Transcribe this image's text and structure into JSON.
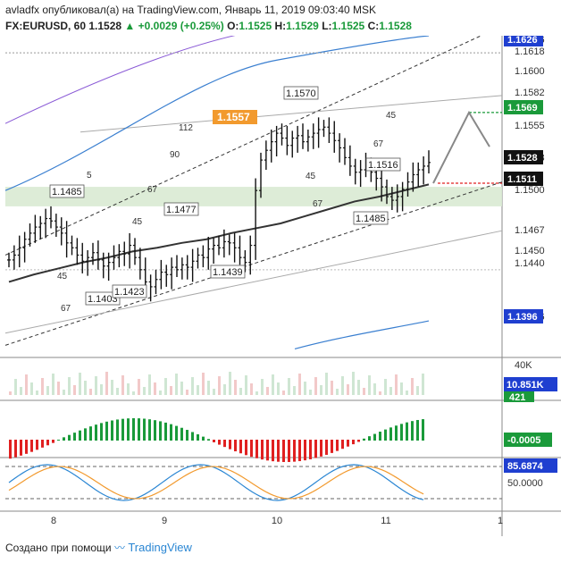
{
  "header": {
    "author": "avladfx",
    "published": "опубликовал(а) на TradingView.com, Январь 11, 2019 09:03:40 MSK",
    "symbol": "FX:EURUSD, 60",
    "last": "1.1528",
    "change": "+0.0029 (+0.25%)",
    "o_label": "O:",
    "o_val": "1.1525",
    "h_label": "H:",
    "h_val": "1.1529",
    "l_label": "L:",
    "l_val": "1.1525",
    "c_label": "C:",
    "c_val": "1.1528"
  },
  "footer": {
    "text": "Создано при помощи",
    "brand": "TradingView"
  },
  "colors": {
    "bull": "#1a9a3a",
    "bear": "#e02020",
    "bb_upper": "#3a7fd0",
    "axis_box": "#1f3fd0"
  },
  "chart_data": {
    "type": "line",
    "title": "",
    "x_ticks": [
      "8",
      "9",
      "10",
      "11",
      "1"
    ],
    "price_axis": {
      "ticks": [
        "1.1626",
        "1.1618",
        "1.1600",
        "1.1582",
        "1.1555",
        "1.1528",
        "1.1500",
        "1.1467",
        "1.1450",
        "1.1440",
        "1.1396"
      ],
      "label_boxes": [
        {
          "text": "1.1626",
          "style": "blue"
        },
        {
          "text": "1.1569",
          "style": "green"
        },
        {
          "text": "1.1528",
          "style": "black"
        },
        {
          "text": "1.1511",
          "style": "black"
        },
        {
          "text": "1.1396",
          "style": "blue"
        }
      ]
    },
    "price_series_close": [
      1.1448,
      1.1452,
      1.1458,
      1.1465,
      1.147,
      1.1475,
      1.1478,
      1.1482,
      1.148,
      1.1475,
      1.147,
      1.1462,
      1.1458,
      1.1452,
      1.1447,
      1.145,
      1.1454,
      1.1448,
      1.1443,
      1.1446,
      1.145,
      1.1455,
      1.1453,
      1.146,
      1.145,
      1.144,
      1.143,
      1.1426,
      1.1432,
      1.1438,
      1.1436,
      1.1442,
      1.144,
      1.1444,
      1.1442,
      1.1447,
      1.1452,
      1.145,
      1.1457,
      1.146,
      1.1458,
      1.1463,
      1.1462,
      1.1458,
      1.145,
      1.1446,
      1.146,
      1.1505,
      1.153,
      1.1538,
      1.1545,
      1.1552,
      1.1548,
      1.1542,
      1.1548,
      1.155,
      1.1545,
      1.1549,
      1.1552,
      1.1555,
      1.1557,
      1.1552,
      1.1546,
      1.154,
      1.1532,
      1.1525,
      1.152,
      1.1522,
      1.1526,
      1.152,
      1.1515,
      1.1508,
      1.15,
      1.1497,
      1.15,
      1.1506,
      1.1512,
      1.1518,
      1.1522,
      1.1525,
      1.1528
    ],
    "ma_series": [
      1.143,
      1.1436,
      1.1441,
      1.1446,
      1.145,
      1.1455,
      1.1458,
      1.1462,
      1.1465,
      1.147,
      1.1474,
      1.1478,
      1.1484,
      1.149,
      1.1496,
      1.15,
      1.1505,
      1.151
    ],
    "projection": [
      1.1511,
      1.1569,
      1.1541
    ],
    "annotations": {
      "price_labels": [
        "1.1485",
        "1.1477",
        "1.1403",
        "1.1423",
        "1.1439",
        "1.1570",
        "1.1516",
        "1.1485"
      ],
      "highlight_label": "1.1557",
      "fib_labels": [
        "45",
        "67",
        "90",
        "112",
        "67",
        "45",
        "5",
        "45",
        "67",
        "45",
        "67"
      ]
    },
    "volume": {
      "axis_label": "40K",
      "value_label": "10.851K",
      "ma_label": "421"
    },
    "macd": {
      "value_label": "-0.0005"
    },
    "stoch": {
      "value_label": "85.6874",
      "mid_label": "50.0000"
    }
  }
}
